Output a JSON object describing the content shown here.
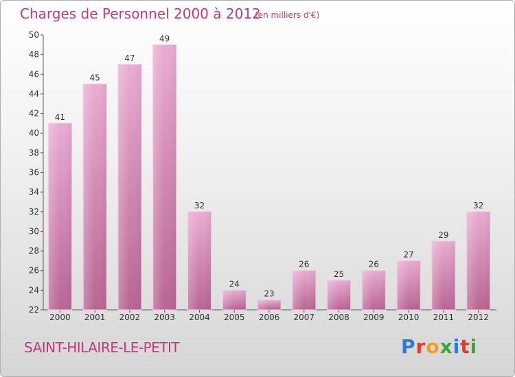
{
  "title": "Charges de Personnel 2000 à 2012",
  "subtitle": "(en milliers d'€)",
  "commune": "SAINT-HILAIRE-LE-PETIT",
  "logo": {
    "text": "Proxiti",
    "letters": [
      "P",
      "r",
      "o",
      "x",
      "i",
      "t",
      "i"
    ],
    "colors": [
      "#2b7bd6",
      "#e63a2c",
      "#f0a020",
      "#3aa639",
      "#2b7bd6",
      "#e63a2c",
      "#3aa639"
    ]
  },
  "colors": {
    "bar": "#d88cb8",
    "bar_light": "#e7a8cf",
    "bar_dark": "#b8608f",
    "title": "#c23a7a"
  },
  "chart_data": {
    "type": "bar",
    "categories": [
      "2000",
      "2001",
      "2002",
      "2003",
      "2004",
      "2005",
      "2006",
      "2007",
      "2008",
      "2009",
      "2010",
      "2011",
      "2012"
    ],
    "values": [
      41,
      45,
      47,
      49,
      32,
      24,
      23,
      26,
      25,
      26,
      27,
      29,
      32
    ],
    "ylim": [
      22,
      50
    ],
    "yticks": [
      22,
      24,
      26,
      28,
      30,
      32,
      34,
      36,
      38,
      40,
      42,
      44,
      46,
      48,
      50
    ],
    "grid": false
  }
}
